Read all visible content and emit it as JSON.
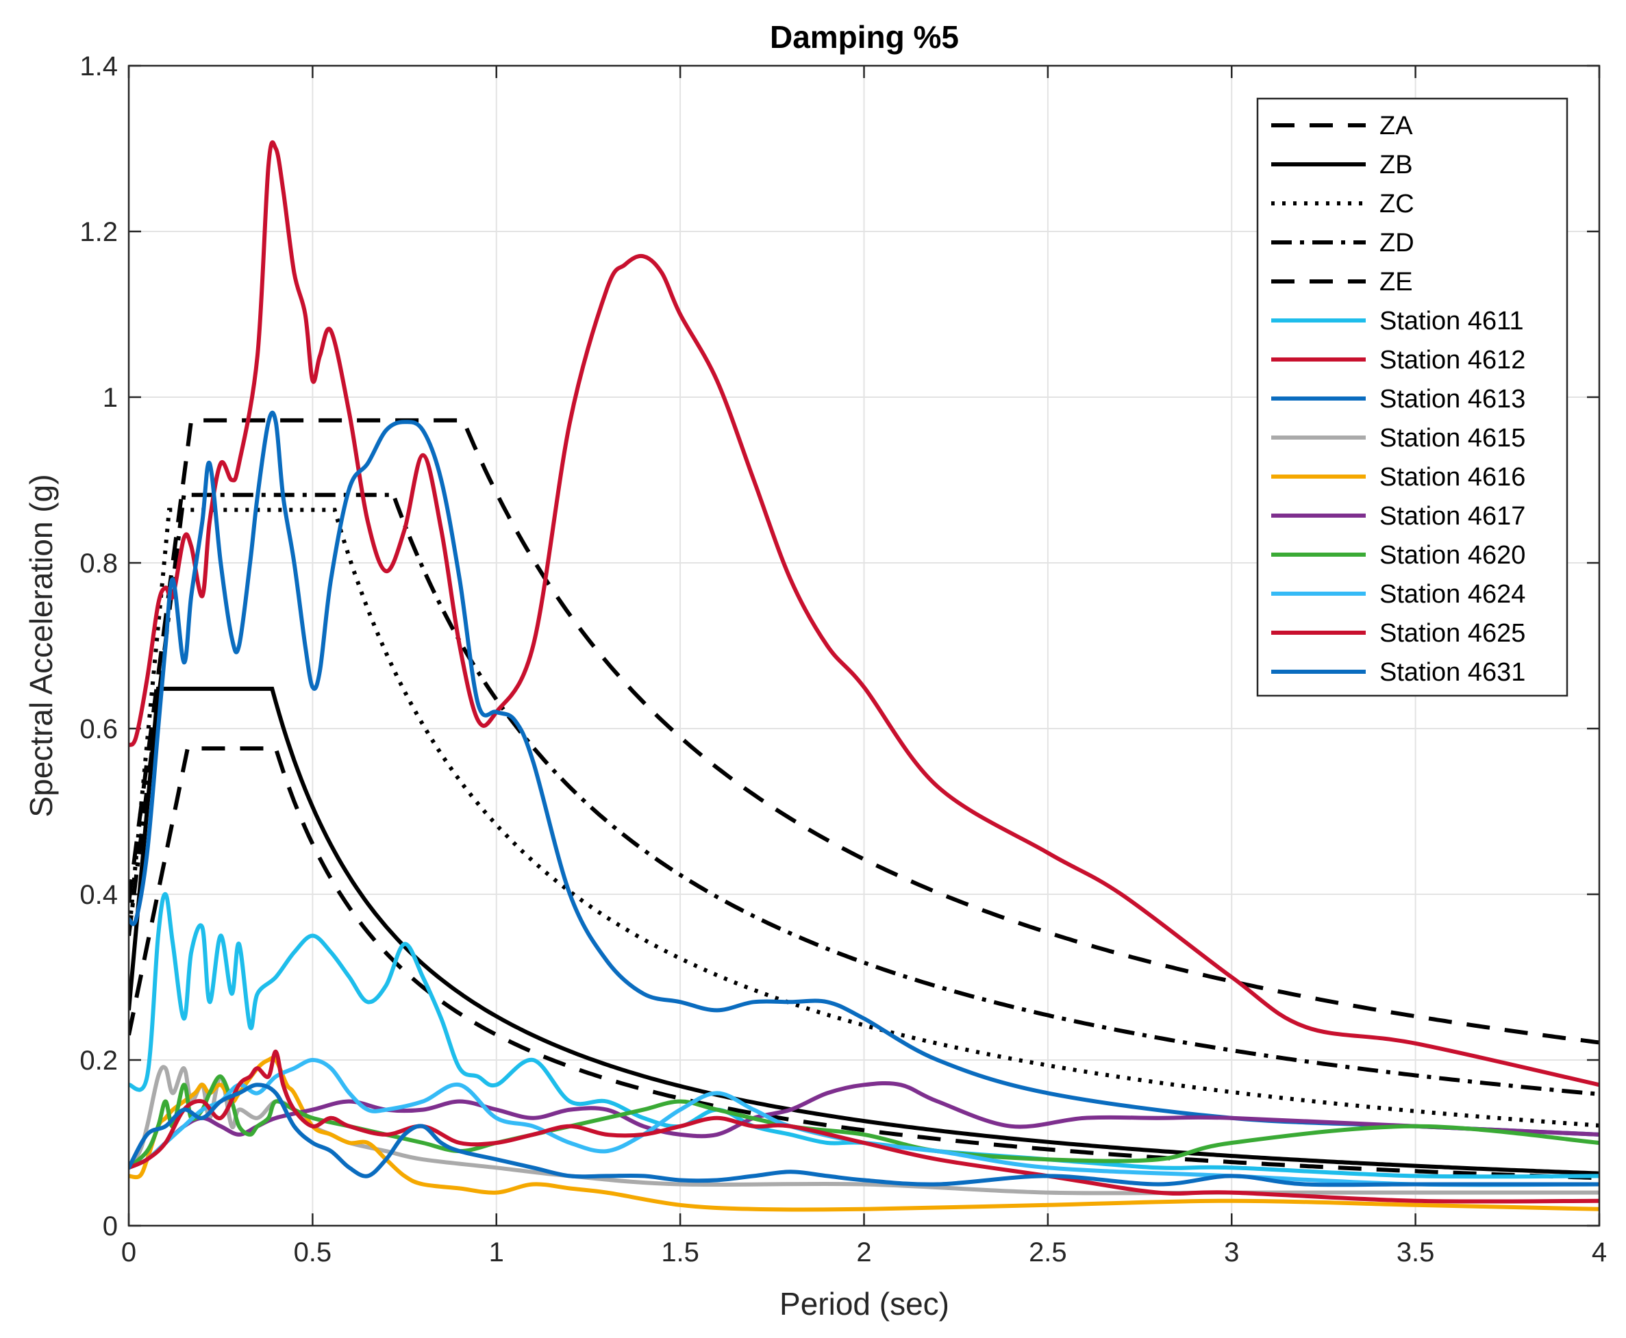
{
  "chart_data": {
    "type": "line",
    "title": "Damping %5",
    "xlabel": "Period (sec)",
    "ylabel": "Spectral Acceleration (g)",
    "xlim": [
      0,
      4
    ],
    "ylim": [
      0,
      1.4
    ],
    "xticks": [
      0,
      0.5,
      1,
      1.5,
      2,
      2.5,
      3,
      3.5,
      4
    ],
    "xtick_labels": [
      "0",
      "0.5",
      "1",
      "1.5",
      "2",
      "2.5",
      "3",
      "3.5",
      "4"
    ],
    "yticks": [
      0,
      0.2,
      0.4,
      0.6,
      0.8,
      1,
      1.2,
      1.4
    ],
    "ytick_labels": [
      "0",
      "0.2",
      "0.4",
      "0.6",
      "0.8",
      "1",
      "1.2",
      "1.4"
    ],
    "grid": true,
    "legend_position": "top-right",
    "design_spectra": [
      {
        "name": "ZA",
        "style": "dashed",
        "color": "#000000",
        "TA": 0.16,
        "TB": 0.4,
        "SDS": 0.576,
        "S0": 0.23
      },
      {
        "name": "ZB",
        "style": "solid",
        "color": "#000000",
        "TA": 0.08,
        "TB": 0.39,
        "SDS": 0.648,
        "S0": 0.26
      },
      {
        "name": "ZC",
        "style": "dotted",
        "color": "#000000",
        "TA": 0.11,
        "TB": 0.56,
        "SDS": 0.864,
        "S0": 0.35
      },
      {
        "name": "ZD",
        "style": "dashdot",
        "color": "#000000",
        "TA": 0.15,
        "TB": 0.72,
        "SDS": 0.882,
        "S0": 0.35
      },
      {
        "name": "ZE",
        "style": "dashed",
        "color": "#000000",
        "TA": 0.17,
        "TB": 0.91,
        "SDS": 0.972,
        "S0": 0.39
      }
    ],
    "series": [
      {
        "name": "Station 4611",
        "color": "#1EBDEB",
        "x": [
          0,
          0.05,
          0.08,
          0.1,
          0.12,
          0.15,
          0.17,
          0.2,
          0.22,
          0.25,
          0.28,
          0.3,
          0.33,
          0.35,
          0.4,
          0.45,
          0.5,
          0.55,
          0.6,
          0.65,
          0.7,
          0.75,
          0.8,
          0.85,
          0.9,
          0.95,
          1.0,
          1.1,
          1.2,
          1.3,
          1.4,
          1.5,
          1.6,
          1.7,
          1.8,
          1.9,
          2.0,
          2.2,
          2.5,
          2.8,
          3.0,
          3.5,
          4.0
        ],
        "values": [
          0.17,
          0.18,
          0.35,
          0.4,
          0.34,
          0.25,
          0.33,
          0.36,
          0.27,
          0.35,
          0.28,
          0.34,
          0.24,
          0.28,
          0.3,
          0.33,
          0.35,
          0.33,
          0.3,
          0.27,
          0.29,
          0.34,
          0.3,
          0.25,
          0.19,
          0.18,
          0.17,
          0.2,
          0.15,
          0.15,
          0.13,
          0.12,
          0.14,
          0.12,
          0.11,
          0.1,
          0.1,
          0.09,
          0.08,
          0.07,
          0.07,
          0.06,
          0.06
        ]
      },
      {
        "name": "Station 4612",
        "color": "#C8102E",
        "x": [
          0,
          0.02,
          0.05,
          0.08,
          0.1,
          0.12,
          0.15,
          0.17,
          0.2,
          0.22,
          0.25,
          0.28,
          0.3,
          0.35,
          0.38,
          0.4,
          0.42,
          0.45,
          0.48,
          0.5,
          0.52,
          0.55,
          0.6,
          0.65,
          0.7,
          0.75,
          0.8,
          0.85,
          0.9,
          0.95,
          1.0,
          1.1,
          1.2,
          1.3,
          1.35,
          1.4,
          1.45,
          1.5,
          1.6,
          1.7,
          1.8,
          1.9,
          2.0,
          2.2,
          2.5,
          2.7,
          3.0,
          3.2,
          3.5,
          4.0
        ],
        "values": [
          0.58,
          0.59,
          0.66,
          0.75,
          0.77,
          0.76,
          0.83,
          0.82,
          0.76,
          0.85,
          0.92,
          0.9,
          0.92,
          1.05,
          1.28,
          1.3,
          1.25,
          1.15,
          1.1,
          1.02,
          1.05,
          1.08,
          0.98,
          0.85,
          0.79,
          0.84,
          0.93,
          0.84,
          0.7,
          0.61,
          0.62,
          0.7,
          0.97,
          1.13,
          1.16,
          1.17,
          1.15,
          1.1,
          1.02,
          0.9,
          0.78,
          0.7,
          0.65,
          0.53,
          0.45,
          0.4,
          0.3,
          0.24,
          0.22,
          0.17
        ]
      },
      {
        "name": "Station 4613",
        "color": "#0A6CBF",
        "x": [
          0,
          0.02,
          0.05,
          0.08,
          0.1,
          0.12,
          0.15,
          0.17,
          0.2,
          0.22,
          0.25,
          0.28,
          0.3,
          0.33,
          0.35,
          0.38,
          0.4,
          0.42,
          0.45,
          0.48,
          0.5,
          0.52,
          0.55,
          0.6,
          0.65,
          0.7,
          0.75,
          0.8,
          0.85,
          0.9,
          0.95,
          1.0,
          1.05,
          1.1,
          1.2,
          1.3,
          1.4,
          1.5,
          1.6,
          1.7,
          1.8,
          1.9,
          2.0,
          2.2,
          2.5,
          3.0,
          3.5,
          4.0
        ],
        "values": [
          0.37,
          0.37,
          0.45,
          0.6,
          0.7,
          0.78,
          0.68,
          0.76,
          0.85,
          0.92,
          0.8,
          0.71,
          0.7,
          0.8,
          0.88,
          0.97,
          0.97,
          0.88,
          0.8,
          0.7,
          0.65,
          0.67,
          0.78,
          0.89,
          0.92,
          0.96,
          0.97,
          0.96,
          0.9,
          0.78,
          0.63,
          0.62,
          0.61,
          0.56,
          0.4,
          0.32,
          0.28,
          0.27,
          0.26,
          0.27,
          0.27,
          0.27,
          0.25,
          0.2,
          0.16,
          0.13,
          0.12,
          0.11
        ]
      },
      {
        "name": "Station 4615",
        "color": "#AAAAAA",
        "x": [
          0,
          0.03,
          0.05,
          0.08,
          0.1,
          0.12,
          0.15,
          0.17,
          0.2,
          0.22,
          0.25,
          0.28,
          0.3,
          0.35,
          0.4,
          0.45,
          0.5,
          0.55,
          0.6,
          0.7,
          0.8,
          1.0,
          1.2,
          1.5,
          2.0,
          2.5,
          3.0,
          3.5,
          4.0
        ],
        "values": [
          0.07,
          0.09,
          0.12,
          0.18,
          0.19,
          0.16,
          0.19,
          0.15,
          0.17,
          0.13,
          0.18,
          0.12,
          0.14,
          0.13,
          0.15,
          0.14,
          0.12,
          0.11,
          0.1,
          0.09,
          0.08,
          0.07,
          0.06,
          0.05,
          0.05,
          0.04,
          0.04,
          0.04,
          0.04
        ]
      },
      {
        "name": "Station 4616",
        "color": "#F5A800",
        "x": [
          0,
          0.03,
          0.05,
          0.08,
          0.1,
          0.12,
          0.15,
          0.18,
          0.2,
          0.22,
          0.25,
          0.28,
          0.3,
          0.35,
          0.38,
          0.4,
          0.43,
          0.45,
          0.5,
          0.55,
          0.6,
          0.65,
          0.7,
          0.75,
          0.8,
          0.9,
          1.0,
          1.1,
          1.2,
          1.3,
          1.5,
          1.7,
          2.0,
          2.5,
          3.0,
          3.5,
          4.0
        ],
        "values": [
          0.06,
          0.06,
          0.08,
          0.12,
          0.13,
          0.14,
          0.15,
          0.16,
          0.17,
          0.16,
          0.17,
          0.15,
          0.16,
          0.19,
          0.2,
          0.2,
          0.17,
          0.16,
          0.12,
          0.11,
          0.1,
          0.1,
          0.08,
          0.06,
          0.05,
          0.045,
          0.04,
          0.05,
          0.045,
          0.04,
          0.025,
          0.02,
          0.02,
          0.025,
          0.03,
          0.025,
          0.02
        ]
      },
      {
        "name": "Station 4617",
        "color": "#7E2F8E",
        "x": [
          0,
          0.05,
          0.1,
          0.15,
          0.2,
          0.25,
          0.3,
          0.35,
          0.4,
          0.5,
          0.6,
          0.7,
          0.8,
          0.9,
          1.0,
          1.1,
          1.2,
          1.3,
          1.4,
          1.5,
          1.6,
          1.7,
          1.8,
          1.9,
          2.0,
          2.1,
          2.2,
          2.4,
          2.6,
          2.8,
          3.0,
          3.5,
          4.0
        ],
        "values": [
          0.07,
          0.08,
          0.1,
          0.12,
          0.13,
          0.12,
          0.11,
          0.12,
          0.13,
          0.14,
          0.15,
          0.14,
          0.14,
          0.15,
          0.14,
          0.13,
          0.14,
          0.14,
          0.12,
          0.11,
          0.11,
          0.13,
          0.14,
          0.16,
          0.17,
          0.17,
          0.15,
          0.12,
          0.13,
          0.13,
          0.13,
          0.12,
          0.11
        ]
      },
      {
        "name": "Station 4620",
        "color": "#3AAA35",
        "x": [
          0,
          0.05,
          0.08,
          0.1,
          0.12,
          0.15,
          0.17,
          0.2,
          0.22,
          0.25,
          0.28,
          0.3,
          0.33,
          0.35,
          0.38,
          0.4,
          0.45,
          0.5,
          0.6,
          0.7,
          0.8,
          0.9,
          1.0,
          1.1,
          1.2,
          1.3,
          1.4,
          1.5,
          1.6,
          1.8,
          2.0,
          2.2,
          2.5,
          2.8,
          3.0,
          3.5,
          4.0
        ],
        "values": [
          0.07,
          0.09,
          0.12,
          0.15,
          0.12,
          0.17,
          0.13,
          0.14,
          0.16,
          0.18,
          0.15,
          0.12,
          0.11,
          0.12,
          0.13,
          0.15,
          0.14,
          0.13,
          0.12,
          0.11,
          0.1,
          0.09,
          0.1,
          0.11,
          0.12,
          0.13,
          0.14,
          0.15,
          0.14,
          0.12,
          0.11,
          0.09,
          0.08,
          0.08,
          0.1,
          0.12,
          0.1
        ]
      },
      {
        "name": "Station 4624",
        "color": "#35BAF6",
        "x": [
          0,
          0.05,
          0.1,
          0.15,
          0.2,
          0.25,
          0.3,
          0.35,
          0.4,
          0.45,
          0.5,
          0.55,
          0.6,
          0.65,
          0.7,
          0.8,
          0.9,
          1.0,
          1.1,
          1.2,
          1.3,
          1.4,
          1.5,
          1.6,
          1.7,
          1.8,
          2.0,
          2.2,
          2.5,
          3.0,
          3.5,
          4.0
        ],
        "values": [
          0.07,
          0.08,
          0.1,
          0.12,
          0.14,
          0.15,
          0.17,
          0.16,
          0.18,
          0.19,
          0.2,
          0.19,
          0.16,
          0.14,
          0.14,
          0.15,
          0.17,
          0.13,
          0.12,
          0.1,
          0.09,
          0.11,
          0.14,
          0.16,
          0.14,
          0.12,
          0.1,
          0.09,
          0.07,
          0.06,
          0.05,
          0.05
        ]
      },
      {
        "name": "Station 4625",
        "color": "#C8102E",
        "x": [
          0,
          0.05,
          0.1,
          0.15,
          0.2,
          0.25,
          0.3,
          0.33,
          0.35,
          0.38,
          0.4,
          0.42,
          0.45,
          0.5,
          0.55,
          0.6,
          0.7,
          0.8,
          0.9,
          1.0,
          1.1,
          1.2,
          1.3,
          1.4,
          1.5,
          1.6,
          1.7,
          1.8,
          2.0,
          2.2,
          2.5,
          2.8,
          3.0,
          3.5,
          4.0
        ],
        "values": [
          0.07,
          0.08,
          0.1,
          0.14,
          0.15,
          0.13,
          0.17,
          0.18,
          0.19,
          0.18,
          0.21,
          0.17,
          0.14,
          0.12,
          0.13,
          0.12,
          0.11,
          0.12,
          0.1,
          0.1,
          0.11,
          0.12,
          0.11,
          0.11,
          0.12,
          0.13,
          0.12,
          0.12,
          0.1,
          0.08,
          0.06,
          0.04,
          0.04,
          0.03,
          0.03
        ]
      },
      {
        "name": "Station 4631",
        "color": "#0A6CBF",
        "x": [
          0,
          0.05,
          0.1,
          0.15,
          0.2,
          0.25,
          0.3,
          0.35,
          0.4,
          0.45,
          0.5,
          0.55,
          0.6,
          0.65,
          0.7,
          0.75,
          0.8,
          0.85,
          0.9,
          1.0,
          1.1,
          1.2,
          1.3,
          1.4,
          1.5,
          1.6,
          1.7,
          1.8,
          1.9,
          2.0,
          2.2,
          2.5,
          2.8,
          3.0,
          3.2,
          3.5,
          4.0
        ],
        "values": [
          0.07,
          0.11,
          0.12,
          0.14,
          0.13,
          0.15,
          0.16,
          0.17,
          0.16,
          0.12,
          0.1,
          0.09,
          0.07,
          0.06,
          0.08,
          0.11,
          0.12,
          0.1,
          0.09,
          0.08,
          0.07,
          0.06,
          0.06,
          0.06,
          0.055,
          0.055,
          0.06,
          0.065,
          0.06,
          0.055,
          0.05,
          0.06,
          0.05,
          0.06,
          0.05,
          0.05,
          0.05
        ]
      }
    ]
  }
}
